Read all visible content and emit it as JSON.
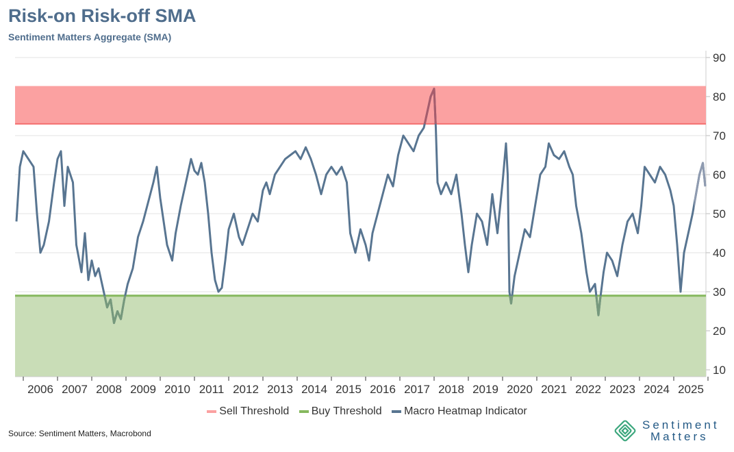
{
  "header": {
    "title": "Risk-on Risk-off SMA",
    "subtitle": "Sentiment Matters Aggregate (SMA)"
  },
  "footer": {
    "source": "Source: Sentiment Matters, Macrobond",
    "logo_line1": "Sentiment",
    "logo_line2": "Matters"
  },
  "colors": {
    "line": "#587591",
    "line_recent": "#8f9bb0",
    "sell_band": "#fba1a1",
    "sell_line": "#f46f6f",
    "buy_band": "#c9ddb7",
    "buy_line": "#86b85e",
    "in_sell": "#a75c6c",
    "in_buy": "#76997c"
  },
  "chart_data": {
    "type": "line",
    "title": "Risk-on Risk-off SMA",
    "xlabel": "",
    "ylabel": "",
    "ylim": [
      8,
      92
    ],
    "yticks": [
      10,
      20,
      30,
      40,
      50,
      60,
      70,
      80,
      90
    ],
    "xticks": [
      "2006",
      "2007",
      "2008",
      "2009",
      "2010",
      "2011",
      "2012",
      "2013",
      "2014",
      "2015",
      "2016",
      "2017",
      "2018",
      "2019",
      "2020",
      "2021",
      "2022",
      "2023",
      "2024",
      "2025"
    ],
    "xlim": [
      2005.8,
      2026
    ],
    "legend_position": "bottom",
    "legend": [
      "Sell Threshold",
      "Buy Threshold",
      "Macro Heatmap Indicator"
    ],
    "sell_threshold": {
      "from": 73,
      "to": 82.7
    },
    "buy_threshold": 29,
    "recent_from": 2025.6,
    "series": [
      {
        "name": "Macro Heatmap Indicator",
        "x": [
          2005.8,
          2005.9,
          2006.0,
          2006.15,
          2006.3,
          2006.4,
          2006.5,
          2006.6,
          2006.75,
          2006.9,
          2007.0,
          2007.1,
          2007.2,
          2007.3,
          2007.45,
          2007.55,
          2007.7,
          2007.8,
          2007.9,
          2008.0,
          2008.1,
          2008.2,
          2008.35,
          2008.45,
          2008.55,
          2008.65,
          2008.75,
          2008.85,
          2008.95,
          2009.05,
          2009.2,
          2009.35,
          2009.5,
          2009.65,
          2009.8,
          2009.9,
          2010.0,
          2010.1,
          2010.2,
          2010.35,
          2010.45,
          2010.6,
          2010.75,
          2010.9,
          2011.0,
          2011.1,
          2011.2,
          2011.3,
          2011.4,
          2011.5,
          2011.6,
          2011.7,
          2011.8,
          2011.9,
          2012.0,
          2012.15,
          2012.3,
          2012.4,
          2012.55,
          2012.7,
          2012.85,
          2013.0,
          2013.1,
          2013.2,
          2013.35,
          2013.5,
          2013.65,
          2013.8,
          2013.95,
          2014.1,
          2014.25,
          2014.4,
          2014.55,
          2014.7,
          2014.85,
          2015.0,
          2015.15,
          2015.3,
          2015.45,
          2015.55,
          2015.7,
          2015.85,
          2016.0,
          2016.1,
          2016.2,
          2016.35,
          2016.5,
          2016.65,
          2016.8,
          2016.95,
          2017.1,
          2017.25,
          2017.4,
          2017.55,
          2017.7,
          2017.8,
          2017.9,
          2018.0,
          2018.05,
          2018.1,
          2018.2,
          2018.35,
          2018.5,
          2018.65,
          2018.8,
          2018.9,
          2019.0,
          2019.1,
          2019.25,
          2019.4,
          2019.55,
          2019.7,
          2019.85,
          2020.0,
          2020.1,
          2020.15,
          2020.2,
          2020.25,
          2020.35,
          2020.5,
          2020.65,
          2020.8,
          2020.95,
          2021.1,
          2021.25,
          2021.35,
          2021.5,
          2021.65,
          2021.8,
          2021.95,
          2022.05,
          2022.15,
          2022.3,
          2022.45,
          2022.55,
          2022.7,
          2022.8,
          2022.85,
          2022.95,
          2023.05,
          2023.2,
          2023.35,
          2023.5,
          2023.65,
          2023.8,
          2023.95,
          2024.05,
          2024.15,
          2024.3,
          2024.45,
          2024.6,
          2024.75,
          2024.9,
          2025.0,
          2025.1,
          2025.2,
          2025.3,
          2025.45,
          2025.55,
          2025.65,
          2025.75,
          2025.85,
          2025.92
        ],
        "values": [
          48,
          62,
          66,
          64,
          62,
          50,
          40,
          42,
          48,
          58,
          64,
          66,
          52,
          62,
          58,
          42,
          35,
          45,
          33,
          38,
          34,
          36,
          30,
          26,
          28,
          22,
          25,
          23,
          28,
          32,
          36,
          44,
          48,
          53,
          58,
          62,
          54,
          48,
          42,
          38,
          45,
          52,
          58,
          64,
          61,
          60,
          63,
          58,
          50,
          40,
          33,
          30,
          31,
          38,
          46,
          50,
          44,
          42,
          46,
          50,
          48,
          56,
          58,
          55,
          60,
          62,
          64,
          65,
          66,
          64,
          67,
          64,
          60,
          55,
          60,
          62,
          60,
          62,
          58,
          45,
          40,
          46,
          42,
          38,
          45,
          50,
          55,
          60,
          57,
          65,
          70,
          68,
          66,
          70,
          72,
          76,
          80,
          82,
          72,
          58,
          55,
          58,
          55,
          60,
          50,
          42,
          35,
          42,
          50,
          48,
          42,
          55,
          45,
          58,
          68,
          60,
          30,
          27,
          34,
          40,
          46,
          44,
          52,
          60,
          62,
          68,
          65,
          64,
          66,
          62,
          60,
          52,
          45,
          35,
          30,
          32,
          24,
          28,
          35,
          40,
          38,
          34,
          42,
          48,
          50,
          45,
          52,
          62,
          60,
          58,
          62,
          60,
          56,
          52,
          42,
          30,
          40,
          46,
          50,
          55,
          60,
          63,
          57
        ]
      }
    ]
  }
}
